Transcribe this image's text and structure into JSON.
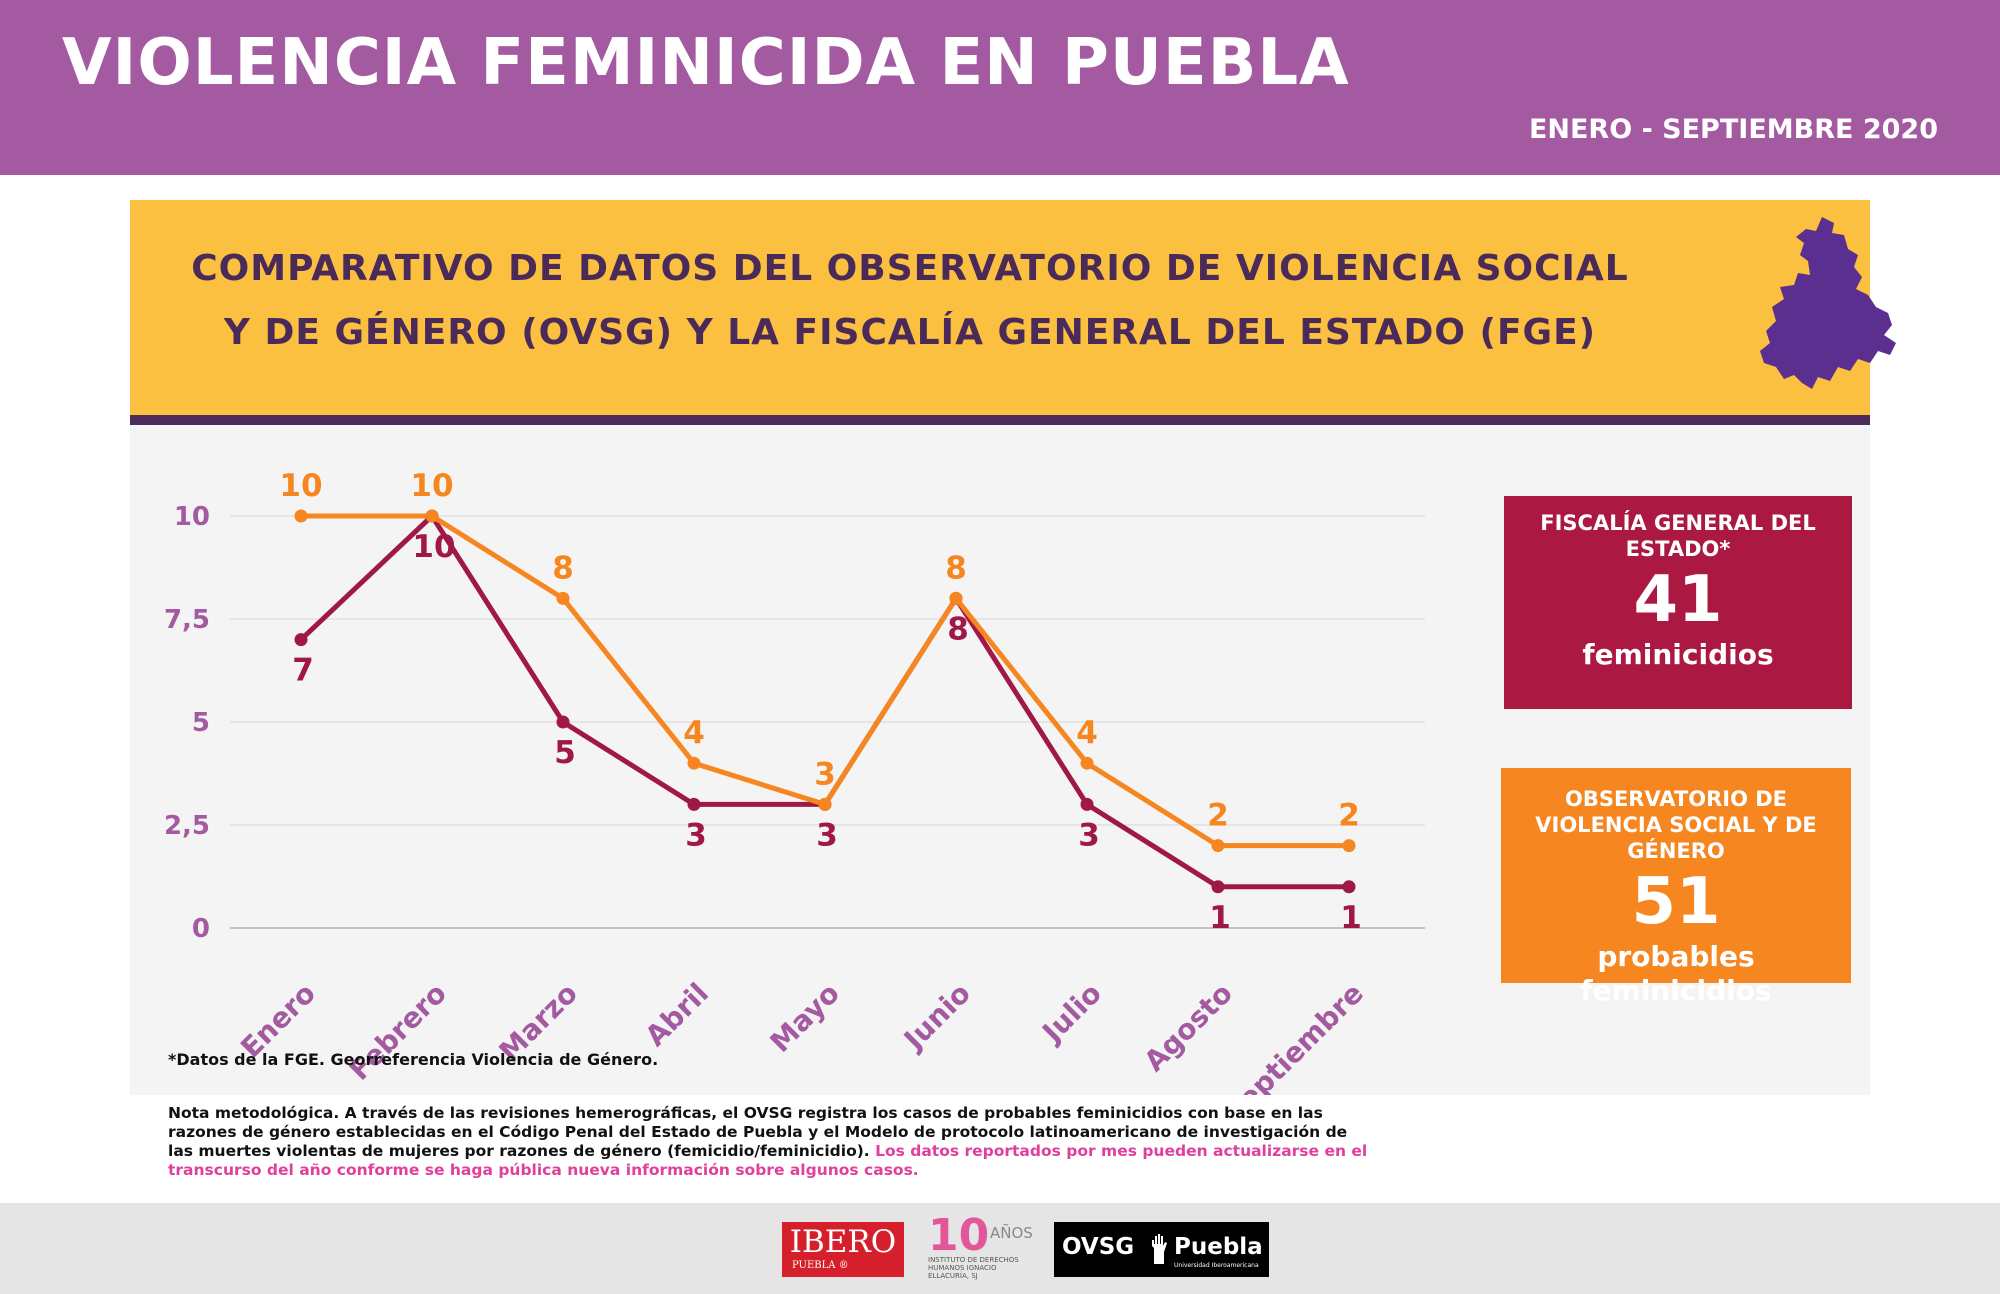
{
  "header": {
    "title": "VIOLENCIA FEMINICIDA EN PUEBLA",
    "date_range": "ENERO - SEPTIEMBRE 2020"
  },
  "banner": {
    "line1": "COMPARATIVO DE DATOS DEL OBSERVATORIO DE VIOLENCIA SOCIAL",
    "line2": "Y DE GÉNERO (OVSG) Y LA FISCALÍA GENERAL DEL ESTADO (FGE)"
  },
  "colors": {
    "header_bg": "#a35aa1",
    "banner_bg": "#fbc03f",
    "fge": "#a01848",
    "ovsg": "#f68620",
    "axis_label": "#a35aa1"
  },
  "chart_data": {
    "type": "line",
    "categories": [
      "Enero",
      "Febrero",
      "Marzo",
      "Abril",
      "Mayo",
      "Junio",
      "Julio",
      "Agosto",
      "Septiembre"
    ],
    "series": [
      {
        "key": "ovsg",
        "color": "#f68620",
        "values": [
          10,
          10,
          8,
          4,
          3,
          8,
          4,
          2,
          2
        ]
      },
      {
        "key": "fge",
        "color": "#a01848",
        "values": [
          7,
          10,
          5,
          3,
          3,
          8,
          3,
          1,
          1
        ]
      }
    ],
    "y_ticks": [
      "0",
      "2,5",
      "5",
      "7,5",
      "10"
    ],
    "ylim": [
      0,
      10
    ],
    "grid": true,
    "title": "",
    "xlabel": "",
    "ylabel": ""
  },
  "boxes": {
    "fge": {
      "title": "FISCALÍA GENERAL DEL ESTADO*",
      "value": "41",
      "unit": "feminicidios"
    },
    "ovsg": {
      "title": "OBSERVATORIO DE VIOLENCIA SOCIAL Y DE GÉNERO",
      "value": "51",
      "unit": "probables feminicidios"
    }
  },
  "footnote": "*Datos de la FGE. Georreferencia Violencia de Género.",
  "method_note": {
    "text": "Nota metodológica. A través de las revisiones hemerográficas, el OVSG registra los casos de probables feminicidios con base en las razones de género establecidas en el Código Penal del Estado de Puebla y el Modelo de protocolo latinoamericano de investigación de las muertes violentas de mujeres por razones de género (femicidio/feminicidio). ",
    "highlight": "Los datos reportados por mes pueden actualizarse en el transcurso del año conforme se haga pública nueva información sobre algunos casos."
  },
  "logos": {
    "ibero": {
      "name": "IBERO",
      "sub": "PUEBLA ®"
    },
    "idhie": {
      "big": "10",
      "anos": "AÑOS",
      "small": "INSTITUTO DE DERECHOS HUMANOS IGNACIO ELLACURÍA, SJ"
    },
    "ovsg": {
      "left": "OVSG",
      "right": "Puebla",
      "sub": "Universidad Iberoamericana"
    }
  }
}
